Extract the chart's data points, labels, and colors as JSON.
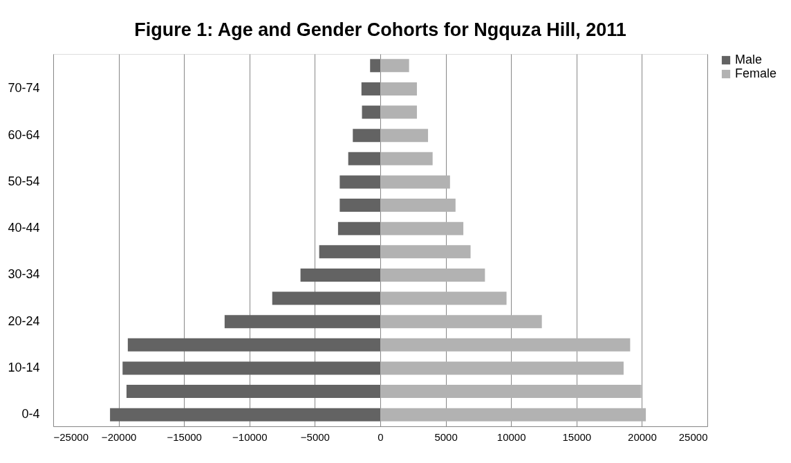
{
  "chart_data": {
    "type": "bar",
    "orientation": "horizontal",
    "title": "Figure 1: Age and Gender Cohorts for Ngquza Hill, 2011",
    "categories": [
      null,
      "70-74",
      null,
      "60-64",
      null,
      "50-54",
      null,
      "40-44",
      null,
      "30-34",
      null,
      "20-24",
      null,
      "10-14",
      null,
      "0-4"
    ],
    "series": [
      {
        "name": "Male",
        "color": "#636363",
        "values": [
          -780,
          -1440,
          -1400,
          -2100,
          -2450,
          -3100,
          -3100,
          -3230,
          -4670,
          -6100,
          -8260,
          -11900,
          -19300,
          -19700,
          -19400,
          -20660
        ]
      },
      {
        "name": "Female",
        "color": "#b2b2b2",
        "values": [
          2200,
          2800,
          2800,
          3650,
          4000,
          5330,
          5750,
          6350,
          6900,
          8000,
          9650,
          12350,
          19100,
          18600,
          19950,
          20300
        ]
      }
    ],
    "xlim": [
      -25000,
      25000
    ],
    "xticks": [
      -25000,
      -20000,
      -15000,
      -10000,
      -5000,
      0,
      5000,
      10000,
      15000,
      20000,
      25000
    ],
    "stacked": true,
    "grid": "x",
    "legend": "right"
  }
}
